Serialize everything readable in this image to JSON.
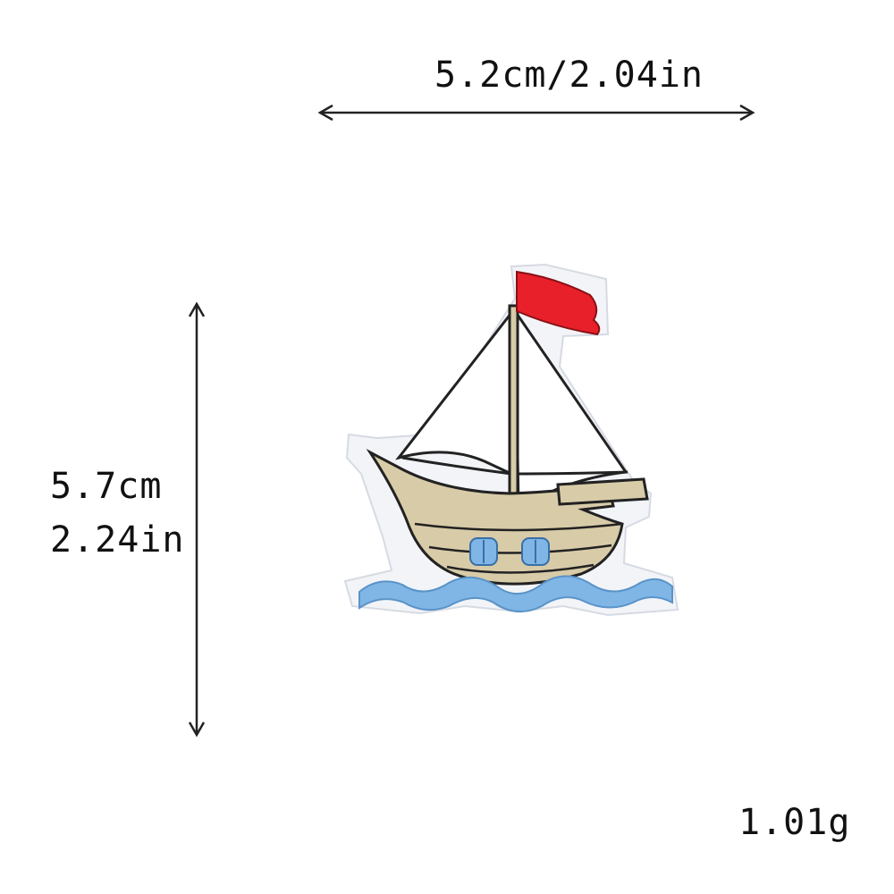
{
  "dimensions": {
    "width_label": "5.2cm/2.04in",
    "height_label_cm": "5.7cm",
    "height_label_in": "2.24in"
  },
  "weight_label": "1.01g",
  "product": {
    "icon": "sailboat-patch",
    "colors": {
      "flag": "#e8202a",
      "sail": "#ffffff",
      "hull": "#d8cba8",
      "water": "#7fb6e6",
      "outline": "#222222"
    }
  }
}
